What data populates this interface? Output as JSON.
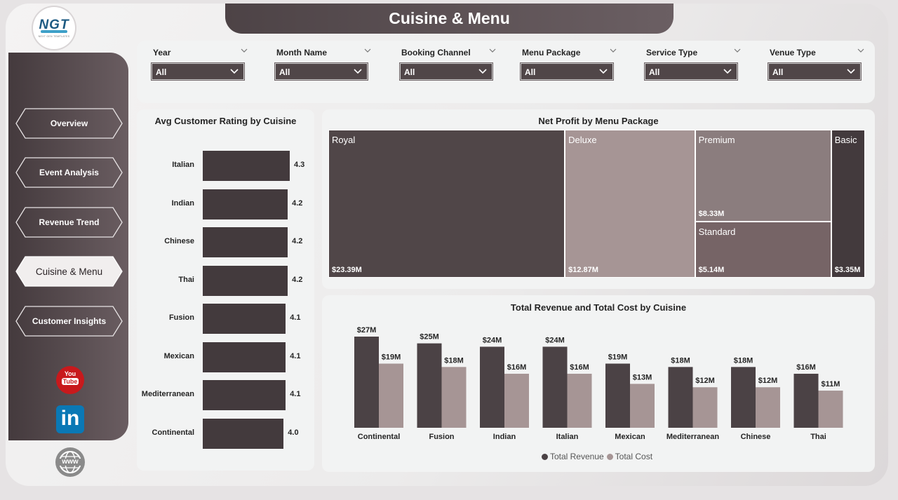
{
  "header": {
    "title": "Cuisine & Menu"
  },
  "logo": {
    "text": "NGT",
    "subtext": "NEXT GEN TEMPLATES"
  },
  "nav": {
    "items": [
      {
        "label": "Overview",
        "active": false
      },
      {
        "label": "Event Analysis",
        "active": false
      },
      {
        "label": "Revenue Trend",
        "active": false
      },
      {
        "label": "Cuisine & Menu",
        "active": true
      },
      {
        "label": "Customer Insights",
        "active": false
      }
    ]
  },
  "social": {
    "youtube_top": "You",
    "youtube_bottom": "Tube",
    "linkedin": "in",
    "web": "www"
  },
  "filters": [
    {
      "label": "Year",
      "value": "All"
    },
    {
      "label": "Month Name",
      "value": "All"
    },
    {
      "label": "Booking Channel",
      "value": "All"
    },
    {
      "label": "Menu Package",
      "value": "All"
    },
    {
      "label": "Service Type",
      "value": "All"
    },
    {
      "label": "Venue Type",
      "value": "All"
    }
  ],
  "colors": {
    "dark": "#433a3d",
    "mid": "#a69595",
    "accent": "#fff"
  },
  "chart_data": [
    {
      "type": "bar",
      "orientation": "horizontal",
      "title": "Avg Customer Rating by Cuisine",
      "categories": [
        "Italian",
        "Indian",
        "Chinese",
        "Thai",
        "Fusion",
        "Mexican",
        "Mediterranean",
        "Continental"
      ],
      "values": [
        4.3,
        4.2,
        4.2,
        4.2,
        4.1,
        4.1,
        4.1,
        4.0
      ],
      "value_labels": [
        "4.3",
        "4.2",
        "4.2",
        "4.2",
        "4.1",
        "4.1",
        "4.1",
        "4.0"
      ]
    },
    {
      "type": "treemap",
      "title": "Net Profit by Menu Package",
      "items": [
        {
          "name": "Royal",
          "value": 23.39,
          "label": "$23.39M"
        },
        {
          "name": "Deluxe",
          "value": 12.87,
          "label": "$12.87M"
        },
        {
          "name": "Premium",
          "value": 8.33,
          "label": "$8.33M"
        },
        {
          "name": "Standard",
          "value": 5.14,
          "label": "$5.14M"
        },
        {
          "name": "Basic",
          "value": 3.35,
          "label": "$3.35M"
        }
      ]
    },
    {
      "type": "bar",
      "title": "Total Revenue and Total Cost by Cuisine",
      "categories": [
        "Continental",
        "Fusion",
        "Indian",
        "Italian",
        "Mexican",
        "Mediterranean",
        "Chinese",
        "Thai"
      ],
      "series": [
        {
          "name": "Total Revenue",
          "color": "#4b4245",
          "values": [
            27,
            25,
            24,
            24,
            19,
            18,
            18,
            16
          ],
          "labels": [
            "$27M",
            "$25M",
            "$24M",
            "$24M",
            "$19M",
            "$18M",
            "$18M",
            "$16M"
          ]
        },
        {
          "name": "Total Cost",
          "color": "#a69595",
          "values": [
            19,
            18,
            16,
            16,
            13,
            12,
            12,
            11
          ],
          "labels": [
            "$19M",
            "$18M",
            "$16M",
            "$16M",
            "$13M",
            "$12M",
            "$12M",
            "$11M"
          ]
        }
      ],
      "legend": "bottom"
    }
  ]
}
